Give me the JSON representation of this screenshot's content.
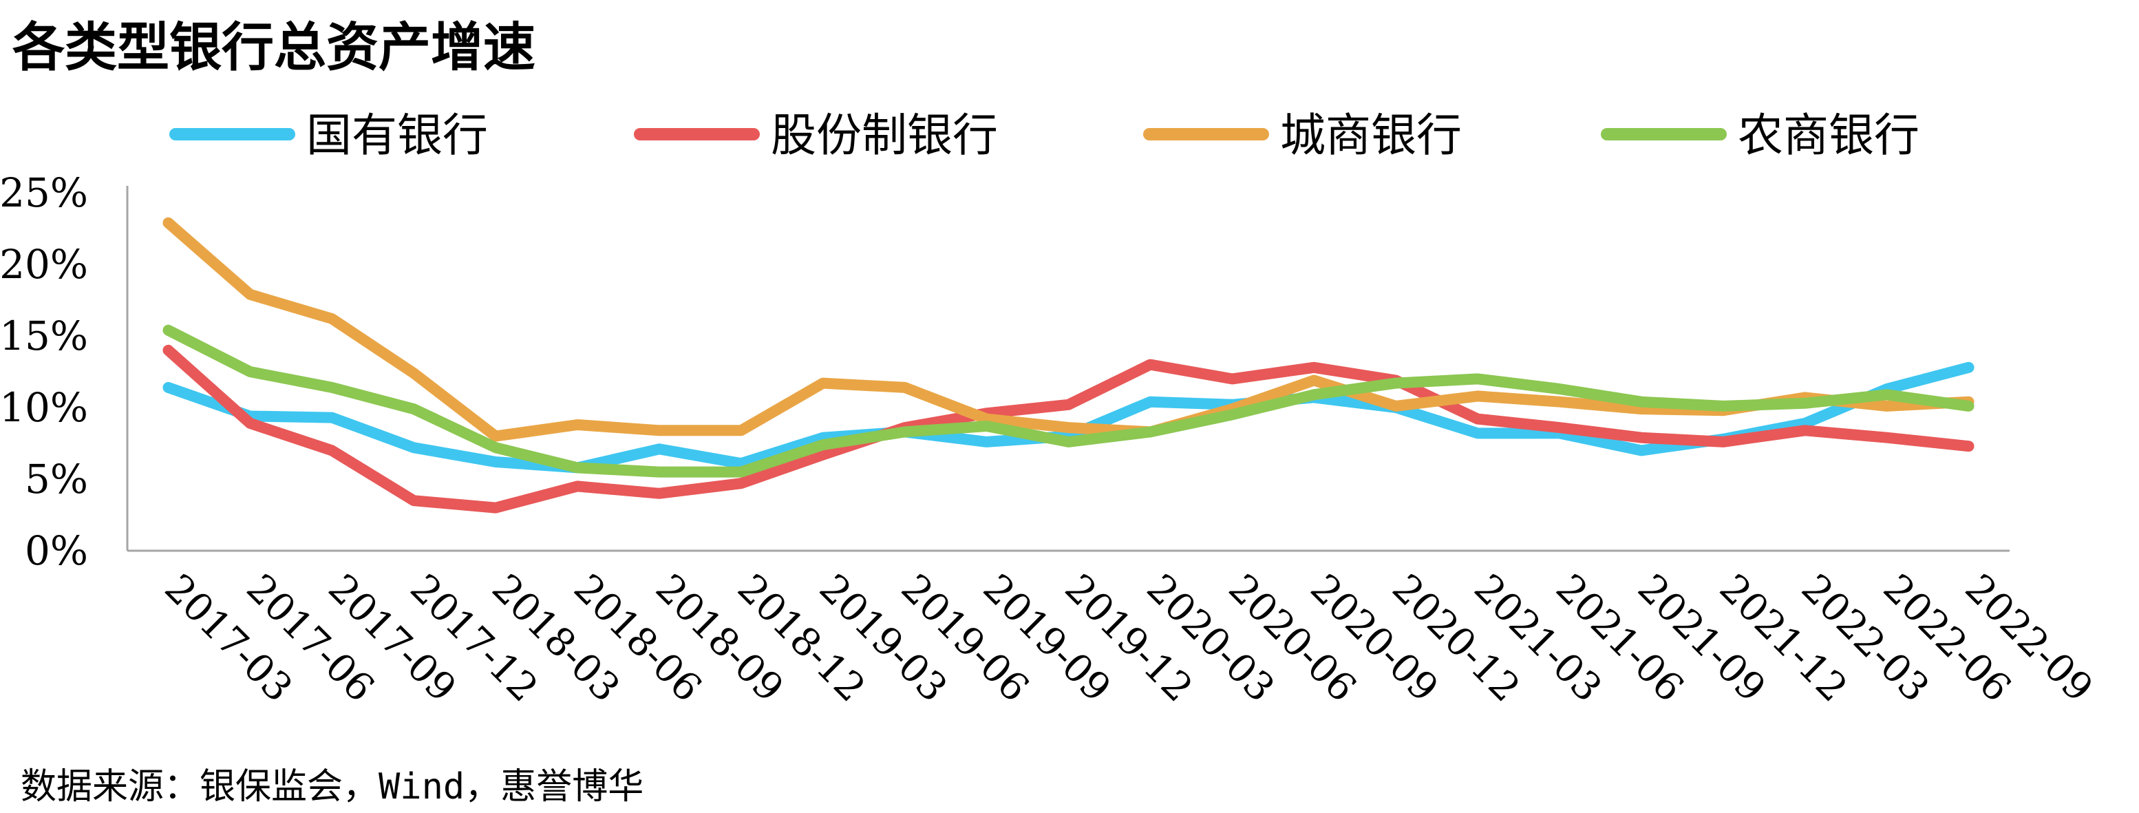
{
  "chart_data": {
    "type": "line",
    "title": "各类型银行总资产增速",
    "source": "数据来源：银保监会，Wind，惠誉博华",
    "categories": [
      "2017-03",
      "2017-06",
      "2017-09",
      "2017-12",
      "2018-03",
      "2018-06",
      "2018-09",
      "2018-12",
      "2019-03",
      "2019-06",
      "2019-09",
      "2019-12",
      "2020-03",
      "2020-06",
      "2020-09",
      "2020-12",
      "2021-03",
      "2021-06",
      "2021-09",
      "2021-12",
      "2022-03",
      "2022-06",
      "2022-09"
    ],
    "yticks": [
      "0%",
      "5%",
      "10%",
      "15%",
      "20%",
      "25%"
    ],
    "ylim": [
      0,
      25
    ],
    "grid": false,
    "legend_position": "top",
    "series": [
      {
        "name": "国有银行",
        "color": "#3ec6f0",
        "values": [
          11.4,
          9.4,
          9.3,
          7.2,
          6.2,
          5.8,
          7.1,
          6.1,
          7.9,
          8.3,
          7.6,
          8.0,
          10.4,
          10.2,
          10.7,
          10.0,
          8.2,
          8.2,
          7.0,
          7.8,
          8.9,
          11.3,
          12.8
        ]
      },
      {
        "name": "股份制银行",
        "color": "#e85858",
        "values": [
          14.0,
          8.9,
          7.0,
          3.5,
          3.0,
          4.5,
          4.0,
          4.7,
          6.7,
          8.6,
          9.6,
          10.2,
          13.0,
          12.0,
          12.8,
          11.9,
          9.2,
          8.6,
          7.9,
          7.6,
          8.4,
          7.9,
          7.3
        ]
      },
      {
        "name": "城商银行",
        "color": "#e9a545",
        "values": [
          22.9,
          17.9,
          16.2,
          12.4,
          8.0,
          8.8,
          8.4,
          8.4,
          11.7,
          11.4,
          9.2,
          8.6,
          8.3,
          9.9,
          11.9,
          10.1,
          10.8,
          10.4,
          9.9,
          9.8,
          10.7,
          10.1,
          10.4
        ]
      },
      {
        "name": "农商银行",
        "color": "#8cc751",
        "values": [
          15.4,
          12.5,
          11.4,
          9.9,
          7.2,
          5.8,
          5.5,
          5.5,
          7.4,
          8.3,
          8.7,
          7.6,
          8.3,
          9.5,
          10.9,
          11.7,
          12.0,
          11.3,
          10.4,
          10.1,
          10.3,
          10.9,
          10.1
        ]
      }
    ]
  }
}
